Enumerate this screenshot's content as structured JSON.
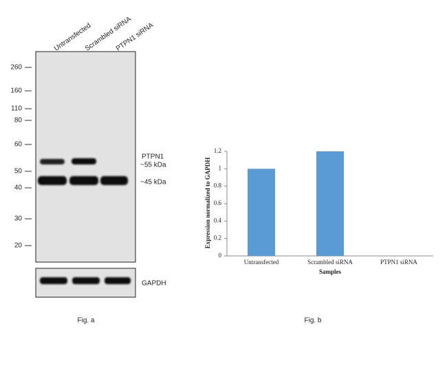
{
  "western_blot": {
    "lanes": [
      "Untransfected",
      "Scrambled siRNA",
      "PTPN1 siRNA"
    ],
    "markers": [
      260,
      160,
      110,
      80,
      60,
      50,
      40,
      30,
      20
    ],
    "band_labels": [
      "PTPN1",
      "~55 kDa",
      "~45 kDa"
    ],
    "loading_control": "GAPDH",
    "caption": "Fig. a"
  },
  "chart_data": {
    "type": "bar",
    "categories": [
      "Untransfected",
      "Scrambled siRNA",
      "PTPN1 siRNA"
    ],
    "values": [
      1,
      1.2,
      0
    ],
    "color": "#5b9bd5",
    "ylim": [
      0,
      1.2
    ],
    "yticks": [
      0,
      0.2,
      0.4,
      0.6,
      0.8,
      1,
      1.2
    ],
    "x_label": "Samples",
    "y_label": "Expression  normalized to GAPDH",
    "caption": "Fig. b"
  }
}
